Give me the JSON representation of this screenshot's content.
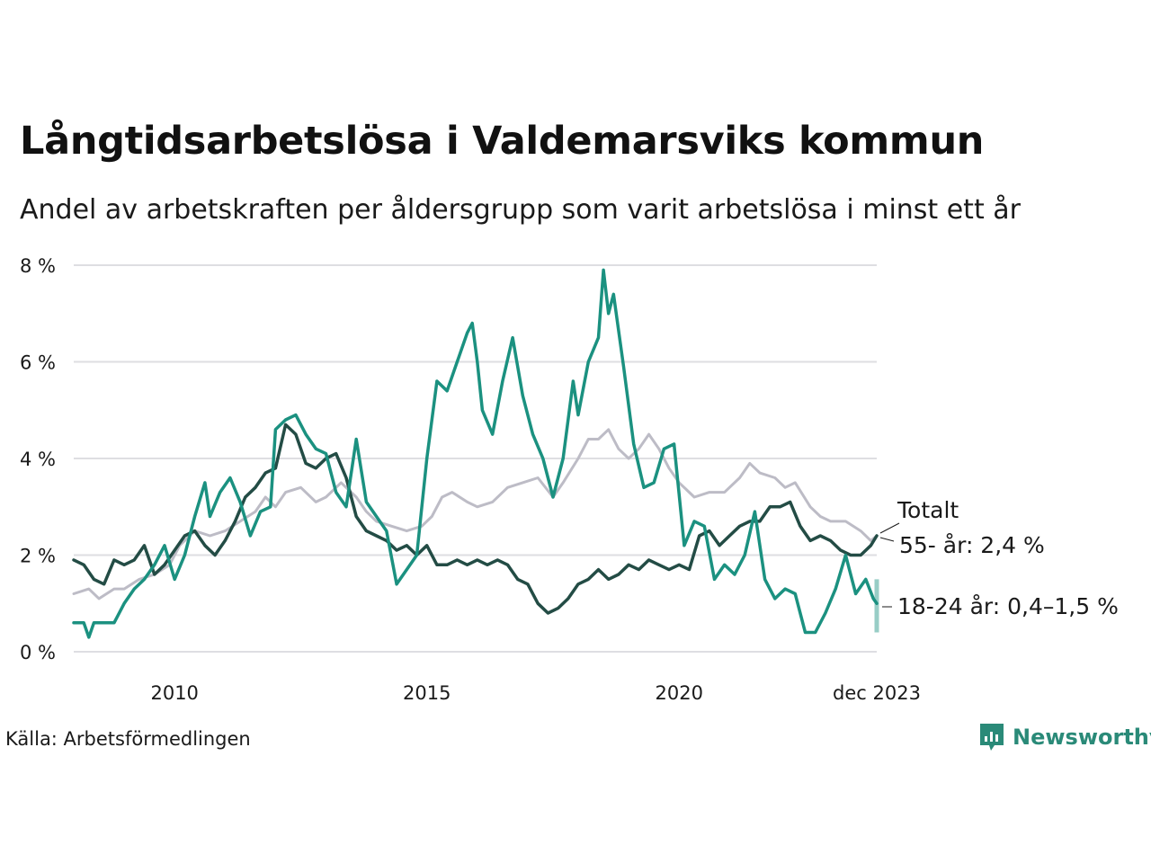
{
  "header": {
    "title": "Långtidsarbetslösa i Valdemarsviks kommun",
    "subtitle": "Andel av arbetskraften per åldersgrupp som varit arbetslösa i minst ett år"
  },
  "footer": {
    "source": "Källa: Arbetsförmedlingen",
    "brand": "Newsworthy",
    "brand_color": "#2a8a78"
  },
  "chart_data": {
    "type": "line",
    "title": "Långtidsarbetslösa i Valdemarsviks kommun",
    "xlabel": "",
    "ylabel": "",
    "xlim": [
      2008.0,
      2023.917
    ],
    "ylim": [
      0,
      8
    ],
    "yticks": [
      0,
      2,
      4,
      6,
      8
    ],
    "ytick_labels": [
      "0 %",
      "2 %",
      "4 %",
      "6 %",
      "8 %"
    ],
    "xticks": [
      2010,
      2015,
      2020,
      2023.917
    ],
    "xtick_labels": [
      "2010",
      "2015",
      "2020",
      "dec 2023"
    ],
    "grid": true,
    "series": [
      {
        "name": "Totalt",
        "label": "Totalt",
        "color": "#bdbcc6",
        "points": [
          [
            2008.0,
            1.2
          ],
          [
            2008.3,
            1.3
          ],
          [
            2008.5,
            1.1
          ],
          [
            2008.8,
            1.3
          ],
          [
            2009.0,
            1.3
          ],
          [
            2009.3,
            1.5
          ],
          [
            2009.6,
            1.6
          ],
          [
            2009.9,
            1.8
          ],
          [
            2010.1,
            2.2
          ],
          [
            2010.4,
            2.5
          ],
          [
            2010.7,
            2.4
          ],
          [
            2011.0,
            2.5
          ],
          [
            2011.3,
            2.7
          ],
          [
            2011.6,
            2.9
          ],
          [
            2011.8,
            3.2
          ],
          [
            2012.0,
            3.0
          ],
          [
            2012.2,
            3.3
          ],
          [
            2012.5,
            3.4
          ],
          [
            2012.8,
            3.1
          ],
          [
            2013.0,
            3.2
          ],
          [
            2013.3,
            3.5
          ],
          [
            2013.6,
            3.2
          ],
          [
            2013.8,
            2.9
          ],
          [
            2014.0,
            2.7
          ],
          [
            2014.3,
            2.6
          ],
          [
            2014.6,
            2.5
          ],
          [
            2014.9,
            2.6
          ],
          [
            2015.1,
            2.8
          ],
          [
            2015.3,
            3.2
          ],
          [
            2015.5,
            3.3
          ],
          [
            2015.8,
            3.1
          ],
          [
            2016.0,
            3.0
          ],
          [
            2016.3,
            3.1
          ],
          [
            2016.6,
            3.4
          ],
          [
            2016.9,
            3.5
          ],
          [
            2017.2,
            3.6
          ],
          [
            2017.5,
            3.2
          ],
          [
            2017.7,
            3.5
          ],
          [
            2018.0,
            4.0
          ],
          [
            2018.2,
            4.4
          ],
          [
            2018.4,
            4.4
          ],
          [
            2018.6,
            4.6
          ],
          [
            2018.8,
            4.2
          ],
          [
            2019.0,
            4.0
          ],
          [
            2019.2,
            4.2
          ],
          [
            2019.4,
            4.5
          ],
          [
            2019.6,
            4.2
          ],
          [
            2019.8,
            3.8
          ],
          [
            2020.0,
            3.5
          ],
          [
            2020.3,
            3.2
          ],
          [
            2020.6,
            3.3
          ],
          [
            2020.9,
            3.3
          ],
          [
            2021.2,
            3.6
          ],
          [
            2021.4,
            3.9
          ],
          [
            2021.6,
            3.7
          ],
          [
            2021.9,
            3.6
          ],
          [
            2022.1,
            3.4
          ],
          [
            2022.3,
            3.5
          ],
          [
            2022.6,
            3.0
          ],
          [
            2022.8,
            2.8
          ],
          [
            2023.0,
            2.7
          ],
          [
            2023.3,
            2.7
          ],
          [
            2023.6,
            2.5
          ],
          [
            2023.8,
            2.3
          ],
          [
            2023.917,
            2.4
          ]
        ]
      },
      {
        "name": "55- år",
        "label": "55- år: 2,4 %",
        "color": "#234c45",
        "points": [
          [
            2008.0,
            1.9
          ],
          [
            2008.2,
            1.8
          ],
          [
            2008.4,
            1.5
          ],
          [
            2008.6,
            1.4
          ],
          [
            2008.8,
            1.9
          ],
          [
            2009.0,
            1.8
          ],
          [
            2009.2,
            1.9
          ],
          [
            2009.4,
            2.2
          ],
          [
            2009.6,
            1.6
          ],
          [
            2009.8,
            1.8
          ],
          [
            2010.0,
            2.1
          ],
          [
            2010.2,
            2.4
          ],
          [
            2010.4,
            2.5
          ],
          [
            2010.6,
            2.2
          ],
          [
            2010.8,
            2.0
          ],
          [
            2011.0,
            2.3
          ],
          [
            2011.2,
            2.7
          ],
          [
            2011.4,
            3.2
          ],
          [
            2011.6,
            3.4
          ],
          [
            2011.8,
            3.7
          ],
          [
            2012.0,
            3.8
          ],
          [
            2012.2,
            4.7
          ],
          [
            2012.4,
            4.5
          ],
          [
            2012.6,
            3.9
          ],
          [
            2012.8,
            3.8
          ],
          [
            2013.0,
            4.0
          ],
          [
            2013.2,
            4.1
          ],
          [
            2013.4,
            3.6
          ],
          [
            2013.6,
            2.8
          ],
          [
            2013.8,
            2.5
          ],
          [
            2014.0,
            2.4
          ],
          [
            2014.2,
            2.3
          ],
          [
            2014.4,
            2.1
          ],
          [
            2014.6,
            2.2
          ],
          [
            2014.8,
            2.0
          ],
          [
            2015.0,
            2.2
          ],
          [
            2015.2,
            1.8
          ],
          [
            2015.4,
            1.8
          ],
          [
            2015.6,
            1.9
          ],
          [
            2015.8,
            1.8
          ],
          [
            2016.0,
            1.9
          ],
          [
            2016.2,
            1.8
          ],
          [
            2016.4,
            1.9
          ],
          [
            2016.6,
            1.8
          ],
          [
            2016.8,
            1.5
          ],
          [
            2017.0,
            1.4
          ],
          [
            2017.2,
            1.0
          ],
          [
            2017.4,
            0.8
          ],
          [
            2017.6,
            0.9
          ],
          [
            2017.8,
            1.1
          ],
          [
            2018.0,
            1.4
          ],
          [
            2018.2,
            1.5
          ],
          [
            2018.4,
            1.7
          ],
          [
            2018.6,
            1.5
          ],
          [
            2018.8,
            1.6
          ],
          [
            2019.0,
            1.8
          ],
          [
            2019.2,
            1.7
          ],
          [
            2019.4,
            1.9
          ],
          [
            2019.6,
            1.8
          ],
          [
            2019.8,
            1.7
          ],
          [
            2020.0,
            1.8
          ],
          [
            2020.2,
            1.7
          ],
          [
            2020.4,
            2.4
          ],
          [
            2020.6,
            2.5
          ],
          [
            2020.8,
            2.2
          ],
          [
            2021.0,
            2.4
          ],
          [
            2021.2,
            2.6
          ],
          [
            2021.4,
            2.7
          ],
          [
            2021.6,
            2.7
          ],
          [
            2021.8,
            3.0
          ],
          [
            2022.0,
            3.0
          ],
          [
            2022.2,
            3.1
          ],
          [
            2022.4,
            2.6
          ],
          [
            2022.6,
            2.3
          ],
          [
            2022.8,
            2.4
          ],
          [
            2023.0,
            2.3
          ],
          [
            2023.2,
            2.1
          ],
          [
            2023.4,
            2.0
          ],
          [
            2023.6,
            2.0
          ],
          [
            2023.8,
            2.2
          ],
          [
            2023.917,
            2.4
          ]
        ]
      },
      {
        "name": "18-24 år",
        "label": "18-24 år: 0,4–1,5 %",
        "color": "#1b9180",
        "range_last": [
          0.4,
          1.5
        ],
        "points": [
          [
            2008.0,
            0.6
          ],
          [
            2008.2,
            0.6
          ],
          [
            2008.3,
            0.3
          ],
          [
            2008.4,
            0.6
          ],
          [
            2008.6,
            0.6
          ],
          [
            2008.8,
            0.6
          ],
          [
            2009.0,
            1.0
          ],
          [
            2009.2,
            1.3
          ],
          [
            2009.4,
            1.5
          ],
          [
            2009.6,
            1.8
          ],
          [
            2009.8,
            2.2
          ],
          [
            2010.0,
            1.5
          ],
          [
            2010.2,
            2.0
          ],
          [
            2010.4,
            2.8
          ],
          [
            2010.6,
            3.5
          ],
          [
            2010.7,
            2.8
          ],
          [
            2010.9,
            3.3
          ],
          [
            2011.1,
            3.6
          ],
          [
            2011.3,
            3.1
          ],
          [
            2011.5,
            2.4
          ],
          [
            2011.7,
            2.9
          ],
          [
            2011.9,
            3.0
          ],
          [
            2012.0,
            4.6
          ],
          [
            2012.2,
            4.8
          ],
          [
            2012.4,
            4.9
          ],
          [
            2012.6,
            4.5
          ],
          [
            2012.8,
            4.2
          ],
          [
            2013.0,
            4.1
          ],
          [
            2013.2,
            3.3
          ],
          [
            2013.4,
            3.0
          ],
          [
            2013.6,
            4.4
          ],
          [
            2013.8,
            3.1
          ],
          [
            2014.0,
            2.8
          ],
          [
            2014.2,
            2.5
          ],
          [
            2014.4,
            1.4
          ],
          [
            2014.6,
            1.7
          ],
          [
            2014.8,
            2.0
          ],
          [
            2015.0,
            4.0
          ],
          [
            2015.2,
            5.6
          ],
          [
            2015.4,
            5.4
          ],
          [
            2015.6,
            6.0
          ],
          [
            2015.8,
            6.6
          ],
          [
            2015.9,
            6.8
          ],
          [
            2016.0,
            6.0
          ],
          [
            2016.1,
            5.0
          ],
          [
            2016.3,
            4.5
          ],
          [
            2016.5,
            5.6
          ],
          [
            2016.7,
            6.5
          ],
          [
            2016.9,
            5.3
          ],
          [
            2017.1,
            4.5
          ],
          [
            2017.3,
            4.0
          ],
          [
            2017.5,
            3.2
          ],
          [
            2017.7,
            4.0
          ],
          [
            2017.9,
            5.6
          ],
          [
            2018.0,
            4.9
          ],
          [
            2018.2,
            6.0
          ],
          [
            2018.4,
            6.5
          ],
          [
            2018.5,
            7.9
          ],
          [
            2018.6,
            7.0
          ],
          [
            2018.7,
            7.4
          ],
          [
            2018.9,
            5.9
          ],
          [
            2019.1,
            4.3
          ],
          [
            2019.3,
            3.4
          ],
          [
            2019.5,
            3.5
          ],
          [
            2019.7,
            4.2
          ],
          [
            2019.9,
            4.3
          ],
          [
            2020.1,
            2.2
          ],
          [
            2020.3,
            2.7
          ],
          [
            2020.5,
            2.6
          ],
          [
            2020.7,
            1.5
          ],
          [
            2020.9,
            1.8
          ],
          [
            2021.1,
            1.6
          ],
          [
            2021.3,
            2.0
          ],
          [
            2021.5,
            2.9
          ],
          [
            2021.7,
            1.5
          ],
          [
            2021.9,
            1.1
          ],
          [
            2022.1,
            1.3
          ],
          [
            2022.3,
            1.2
          ],
          [
            2022.5,
            0.4
          ],
          [
            2022.7,
            0.4
          ],
          [
            2022.9,
            0.8
          ],
          [
            2023.1,
            1.3
          ],
          [
            2023.3,
            2.0
          ],
          [
            2023.5,
            1.2
          ],
          [
            2023.7,
            1.5
          ],
          [
            2023.85,
            1.1
          ],
          [
            2023.917,
            1.0
          ]
        ]
      }
    ]
  }
}
